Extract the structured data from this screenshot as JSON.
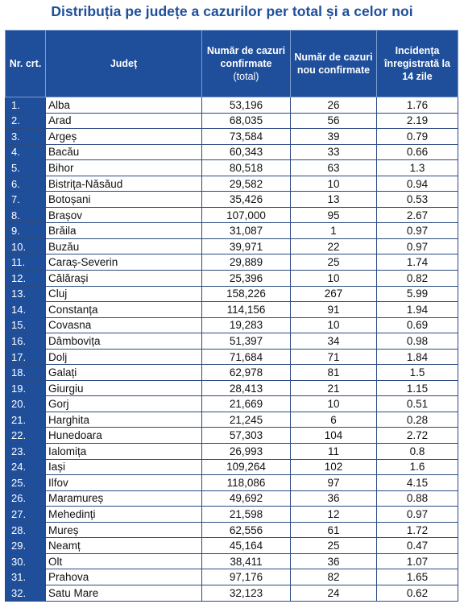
{
  "title": "Distribuția pe județe a cazurilor per total și a celor noi",
  "headers": {
    "nr": "Nr. crt.",
    "judet": "Județ",
    "total": "Număr de cazuri confirmate",
    "total_sub": "(total)",
    "noi": "Număr de cazuri nou confirmate",
    "incidenta": "Incidența înregistrată la 14 zile"
  },
  "rows": [
    {
      "nr": "1.",
      "judet": "Alba",
      "total": "53,196",
      "noi": "26",
      "incidenta": "1.76"
    },
    {
      "nr": "2.",
      "judet": "Arad",
      "total": "68,035",
      "noi": "56",
      "incidenta": "2.19"
    },
    {
      "nr": "3.",
      "judet": "Argeș",
      "total": "73,584",
      "noi": "39",
      "incidenta": "0.79"
    },
    {
      "nr": "4.",
      "judet": "Bacău",
      "total": "60,343",
      "noi": "33",
      "incidenta": "0.66"
    },
    {
      "nr": "5.",
      "judet": "Bihor",
      "total": "80,518",
      "noi": "63",
      "incidenta": "1.3"
    },
    {
      "nr": "6.",
      "judet": "Bistrița-Năsăud",
      "total": "29,582",
      "noi": "10",
      "incidenta": "0.94"
    },
    {
      "nr": "7.",
      "judet": "Botoșani",
      "total": "35,426",
      "noi": "13",
      "incidenta": "0.53"
    },
    {
      "nr": "8.",
      "judet": "Brașov",
      "total": "107,000",
      "noi": "95",
      "incidenta": "2.67"
    },
    {
      "nr": "9.",
      "judet": "Brăila",
      "total": "31,087",
      "noi": "1",
      "incidenta": "0.97"
    },
    {
      "nr": "10.",
      "judet": "Buzău",
      "total": "39,971",
      "noi": "22",
      "incidenta": "0.97"
    },
    {
      "nr": "11.",
      "judet": "Caraș-Severin",
      "total": "29,889",
      "noi": "25",
      "incidenta": "1.74"
    },
    {
      "nr": "12.",
      "judet": "Călărași",
      "total": "25,396",
      "noi": "10",
      "incidenta": "0.82"
    },
    {
      "nr": "13.",
      "judet": "Cluj",
      "total": "158,226",
      "noi": "267",
      "incidenta": "5.99"
    },
    {
      "nr": "14.",
      "judet": "Constanța",
      "total": "114,156",
      "noi": "91",
      "incidenta": "1.94"
    },
    {
      "nr": "15.",
      "judet": "Covasna",
      "total": "19,283",
      "noi": "10",
      "incidenta": "0.69"
    },
    {
      "nr": "16.",
      "judet": "Dâmbovița",
      "total": "51,397",
      "noi": "34",
      "incidenta": "0.98"
    },
    {
      "nr": "17.",
      "judet": "Dolj",
      "total": "71,684",
      "noi": "71",
      "incidenta": "1.84"
    },
    {
      "nr": "18.",
      "judet": "Galați",
      "total": "62,978",
      "noi": "81",
      "incidenta": "1.5"
    },
    {
      "nr": "19.",
      "judet": "Giurgiu",
      "total": "28,413",
      "noi": "21",
      "incidenta": "1.15"
    },
    {
      "nr": "20.",
      "judet": "Gorj",
      "total": "21,669",
      "noi": "10",
      "incidenta": "0.51"
    },
    {
      "nr": "21.",
      "judet": "Harghita",
      "total": "21,245",
      "noi": "6",
      "incidenta": "0.28"
    },
    {
      "nr": "22.",
      "judet": "Hunedoara",
      "total": "57,303",
      "noi": "104",
      "incidenta": "2.72"
    },
    {
      "nr": "23.",
      "judet": "Ialomița",
      "total": "26,993",
      "noi": "11",
      "incidenta": "0.8"
    },
    {
      "nr": "24.",
      "judet": "Iași",
      "total": "109,264",
      "noi": "102",
      "incidenta": "1.6"
    },
    {
      "nr": "25.",
      "judet": "Ilfov",
      "total": "118,086",
      "noi": "97",
      "incidenta": "4.15"
    },
    {
      "nr": "26.",
      "judet": "Maramureș",
      "total": "49,692",
      "noi": "36",
      "incidenta": "0.88"
    },
    {
      "nr": "27.",
      "judet": "Mehedinți",
      "total": "21,598",
      "noi": "12",
      "incidenta": "0.97"
    },
    {
      "nr": "28.",
      "judet": "Mureș",
      "total": "62,556",
      "noi": "61",
      "incidenta": "1.72"
    },
    {
      "nr": "29.",
      "judet": "Neamț",
      "total": "45,164",
      "noi": "25",
      "incidenta": "0.47"
    },
    {
      "nr": "30.",
      "judet": "Olt",
      "total": "38,411",
      "noi": "36",
      "incidenta": "1.07"
    },
    {
      "nr": "31.",
      "judet": "Prahova",
      "total": "97,176",
      "noi": "82",
      "incidenta": "1.65"
    },
    {
      "nr": "32.",
      "judet": "Satu Mare",
      "total": "32,123",
      "noi": "24",
      "incidenta": "0.62"
    }
  ]
}
